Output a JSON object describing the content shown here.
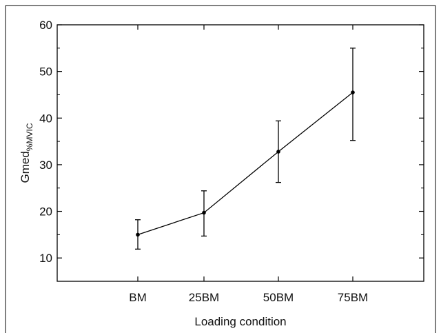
{
  "chart_data": {
    "type": "line",
    "categories": [
      "BM",
      "25BM",
      "50BM",
      "75BM"
    ],
    "series": [
      {
        "values": [
          15.0,
          19.7,
          32.8,
          45.5
        ],
        "error_low": [
          11.9,
          14.7,
          26.2,
          35.2
        ],
        "error_high": [
          18.2,
          24.4,
          39.4,
          55.0
        ]
      }
    ],
    "xlabel": "Loading condition",
    "ylabel": {
      "main": "Gmed",
      "subscript": "%MVIC"
    },
    "yticks": [
      10,
      20,
      30,
      40,
      50,
      60
    ],
    "ylim": [
      5,
      60
    ],
    "grid": false,
    "legend": false
  }
}
